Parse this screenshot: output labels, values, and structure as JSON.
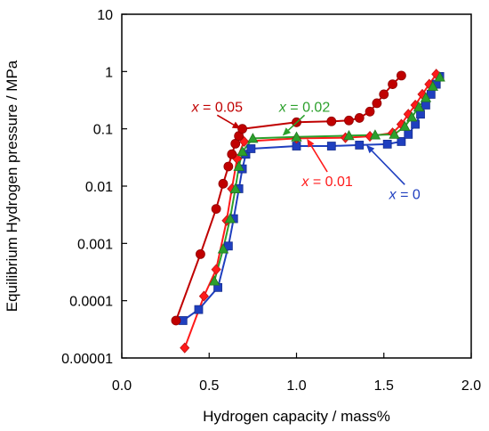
{
  "chart_data": {
    "type": "scatter",
    "xlabel": "Hydrogen capacity / mass%",
    "ylabel": "Equilibrium Hydrogen pressure / MPa",
    "xlim": [
      0,
      2
    ],
    "ylim": [
      1e-05,
      10
    ],
    "yscale": "log",
    "grid": false,
    "legend": "none",
    "x_ticks": [
      {
        "value": 0.0,
        "label": "0.0"
      },
      {
        "value": 0.5,
        "label": "0.5"
      },
      {
        "value": 1.0,
        "label": "1.0"
      },
      {
        "value": 1.5,
        "label": "1.5"
      },
      {
        "value": 2.0,
        "label": "2.0"
      }
    ],
    "y_ticks": [
      {
        "value": 1e-05,
        "label": "0.00001"
      },
      {
        "value": 0.0001,
        "label": "0.0001"
      },
      {
        "value": 0.001,
        "label": "0.001"
      },
      {
        "value": 0.01,
        "label": "0.01"
      },
      {
        "value": 0.1,
        "label": "0.1"
      },
      {
        "value": 1,
        "label": "1"
      },
      {
        "value": 10,
        "label": "10"
      }
    ],
    "series": [
      {
        "key": "x0",
        "color": "#1f3fbf",
        "marker": "square",
        "points": [
          {
            "x": 0.35,
            "y": 4.5e-05
          },
          {
            "x": 0.44,
            "y": 7e-05
          },
          {
            "x": 0.55,
            "y": 0.00017
          },
          {
            "x": 0.61,
            "y": 0.0009
          },
          {
            "x": 0.64,
            "y": 0.0027
          },
          {
            "x": 0.67,
            "y": 0.009
          },
          {
            "x": 0.69,
            "y": 0.02
          },
          {
            "x": 0.71,
            "y": 0.036
          },
          {
            "x": 0.74,
            "y": 0.045
          },
          {
            "x": 1.0,
            "y": 0.05
          },
          {
            "x": 1.2,
            "y": 0.05
          },
          {
            "x": 1.36,
            "y": 0.052
          },
          {
            "x": 1.52,
            "y": 0.054
          },
          {
            "x": 1.6,
            "y": 0.06
          },
          {
            "x": 1.64,
            "y": 0.08
          },
          {
            "x": 1.68,
            "y": 0.12
          },
          {
            "x": 1.71,
            "y": 0.18
          },
          {
            "x": 1.74,
            "y": 0.26
          },
          {
            "x": 1.77,
            "y": 0.4
          },
          {
            "x": 1.8,
            "y": 0.6
          },
          {
            "x": 1.82,
            "y": 0.82
          }
        ]
      },
      {
        "key": "x001",
        "color": "#ff1a1a",
        "marker": "diamond",
        "points": [
          {
            "x": 0.36,
            "y": 1.5e-05
          },
          {
            "x": 0.47,
            "y": 0.00012
          },
          {
            "x": 0.54,
            "y": 0.00035
          },
          {
            "x": 0.6,
            "y": 0.0025
          },
          {
            "x": 0.63,
            "y": 0.009
          },
          {
            "x": 0.66,
            "y": 0.03
          },
          {
            "x": 0.7,
            "y": 0.06
          },
          {
            "x": 1.0,
            "y": 0.068
          },
          {
            "x": 1.28,
            "y": 0.07
          },
          {
            "x": 1.42,
            "y": 0.074
          },
          {
            "x": 1.55,
            "y": 0.085
          },
          {
            "x": 1.6,
            "y": 0.12
          },
          {
            "x": 1.64,
            "y": 0.18
          },
          {
            "x": 1.68,
            "y": 0.26
          },
          {
            "x": 1.72,
            "y": 0.4
          },
          {
            "x": 1.76,
            "y": 0.6
          },
          {
            "x": 1.8,
            "y": 0.9
          }
        ]
      },
      {
        "key": "x002",
        "color": "#2ca02c",
        "marker": "triangle",
        "points": [
          {
            "x": 0.53,
            "y": 0.00022
          },
          {
            "x": 0.58,
            "y": 0.0008
          },
          {
            "x": 0.62,
            "y": 0.0027
          },
          {
            "x": 0.65,
            "y": 0.009
          },
          {
            "x": 0.67,
            "y": 0.022
          },
          {
            "x": 0.69,
            "y": 0.04
          },
          {
            "x": 0.75,
            "y": 0.068
          },
          {
            "x": 1.0,
            "y": 0.072
          },
          {
            "x": 1.3,
            "y": 0.076
          },
          {
            "x": 1.45,
            "y": 0.078
          },
          {
            "x": 1.56,
            "y": 0.08
          },
          {
            "x": 1.62,
            "y": 0.11
          },
          {
            "x": 1.66,
            "y": 0.16
          },
          {
            "x": 1.7,
            "y": 0.24
          },
          {
            "x": 1.74,
            "y": 0.35
          },
          {
            "x": 1.78,
            "y": 0.55
          },
          {
            "x": 1.82,
            "y": 0.8
          }
        ]
      },
      {
        "key": "x005",
        "color": "#c00000",
        "marker": "circle",
        "points": [
          {
            "x": 0.31,
            "y": 4.5e-05
          },
          {
            "x": 0.45,
            "y": 0.00065
          },
          {
            "x": 0.54,
            "y": 0.004
          },
          {
            "x": 0.58,
            "y": 0.011
          },
          {
            "x": 0.61,
            "y": 0.022
          },
          {
            "x": 0.63,
            "y": 0.036
          },
          {
            "x": 0.65,
            "y": 0.055
          },
          {
            "x": 0.67,
            "y": 0.075
          },
          {
            "x": 0.69,
            "y": 0.1
          },
          {
            "x": 1.0,
            "y": 0.13
          },
          {
            "x": 1.2,
            "y": 0.135
          },
          {
            "x": 1.3,
            "y": 0.14
          },
          {
            "x": 1.36,
            "y": 0.155
          },
          {
            "x": 1.42,
            "y": 0.2
          },
          {
            "x": 1.46,
            "y": 0.28
          },
          {
            "x": 1.5,
            "y": 0.4
          },
          {
            "x": 1.55,
            "y": 0.6
          },
          {
            "x": 1.6,
            "y": 0.85
          }
        ]
      }
    ],
    "annotations": [
      {
        "series": "x005",
        "var": "x",
        "text": " = 0.05",
        "color": "#c00000",
        "at": {
          "x": 0.4,
          "y": 0.2
        },
        "arrow_to": {
          "x": 0.68,
          "y": 0.1
        }
      },
      {
        "series": "x002",
        "var": "x",
        "text": " = 0.02",
        "color": "#2ca02c",
        "at": {
          "x": 0.9,
          "y": 0.2
        },
        "arrow_to": {
          "x": 0.92,
          "y": 0.076
        }
      },
      {
        "series": "x001",
        "var": "x",
        "text": " = 0.01",
        "color": "#ff1a1a",
        "at": {
          "x": 1.03,
          "y": 0.01
        },
        "arrow_to": {
          "x": 1.06,
          "y": 0.067
        }
      },
      {
        "series": "x0",
        "var": "x",
        "text": " = 0",
        "color": "#1f3fbf",
        "at": {
          "x": 1.53,
          "y": 0.006
        },
        "arrow_to": {
          "x": 1.4,
          "y": 0.052
        }
      }
    ]
  }
}
